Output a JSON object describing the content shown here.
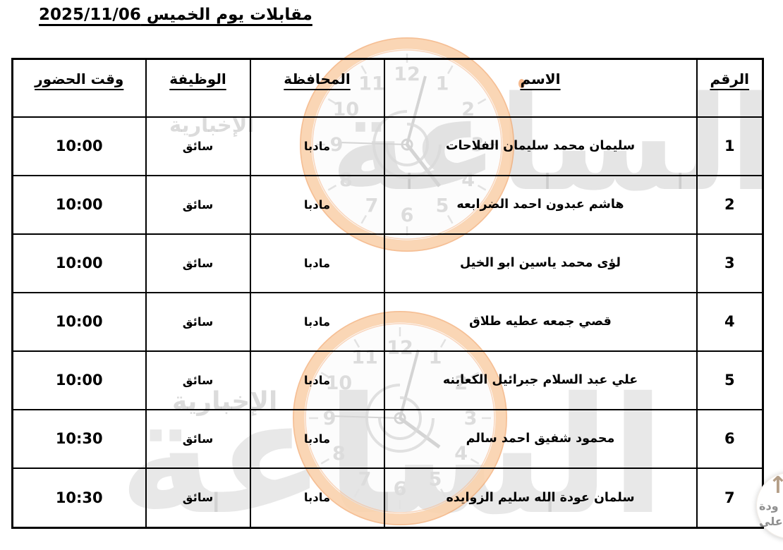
{
  "page": {
    "title": "مقابلات يوم الخميس 2025/11/06"
  },
  "table": {
    "headers": {
      "number": "الرقم",
      "name": "الاسم",
      "governorate": "المحافظة",
      "job": "الوظيفة",
      "attendance_time": "وقت الحضور"
    },
    "rows": [
      {
        "number": "1",
        "name": "سليمان محمد سليمان الفلاحات",
        "governorate": "مادبا",
        "job": "سائق",
        "time": "10:00"
      },
      {
        "number": "2",
        "name": "هاشم عبدون احمد الضرابعه",
        "governorate": "مادبا",
        "job": "سائق",
        "time": "10:00"
      },
      {
        "number": "3",
        "name": "لؤى محمد ياسين ابو الخيل",
        "governorate": "مادبا",
        "job": "سائق",
        "time": "10:00"
      },
      {
        "number": "4",
        "name": "قصي جمعه عطيه طلاق",
        "governorate": "مادبا",
        "job": "سائق",
        "time": "10:00"
      },
      {
        "number": "5",
        "name": "علي عبد السلام جبرائيل الكعابنه",
        "governorate": "مادبا",
        "job": "سائق",
        "time": "10:00"
      },
      {
        "number": "6",
        "name": "محمود شفيق احمد سالم",
        "governorate": "مادبا",
        "job": "سائق",
        "time": "10:30"
      },
      {
        "number": "7",
        "name": "سلمان عودة الله سليم الزوايده",
        "governorate": "مادبا",
        "job": "سائق",
        "time": "10:30"
      }
    ]
  },
  "watermark": {
    "brand_main": "الساعة",
    "brand_sub": "الإخبارية",
    "clock_numbers": [
      "12",
      "1",
      "2",
      "3",
      "4",
      "5",
      "6",
      "7",
      "8",
      "9",
      "10",
      "11"
    ],
    "ring_color": "#f3a86f",
    "ring_soft_color": "#fad2ad",
    "gray_color": "#dcdcdc"
  },
  "back_to_top": {
    "arrow_icon": "↑",
    "label_line1": "ودة",
    "label_line2": "على"
  },
  "colors": {
    "border": "#000000",
    "text": "#000000",
    "background": "#ffffff"
  }
}
